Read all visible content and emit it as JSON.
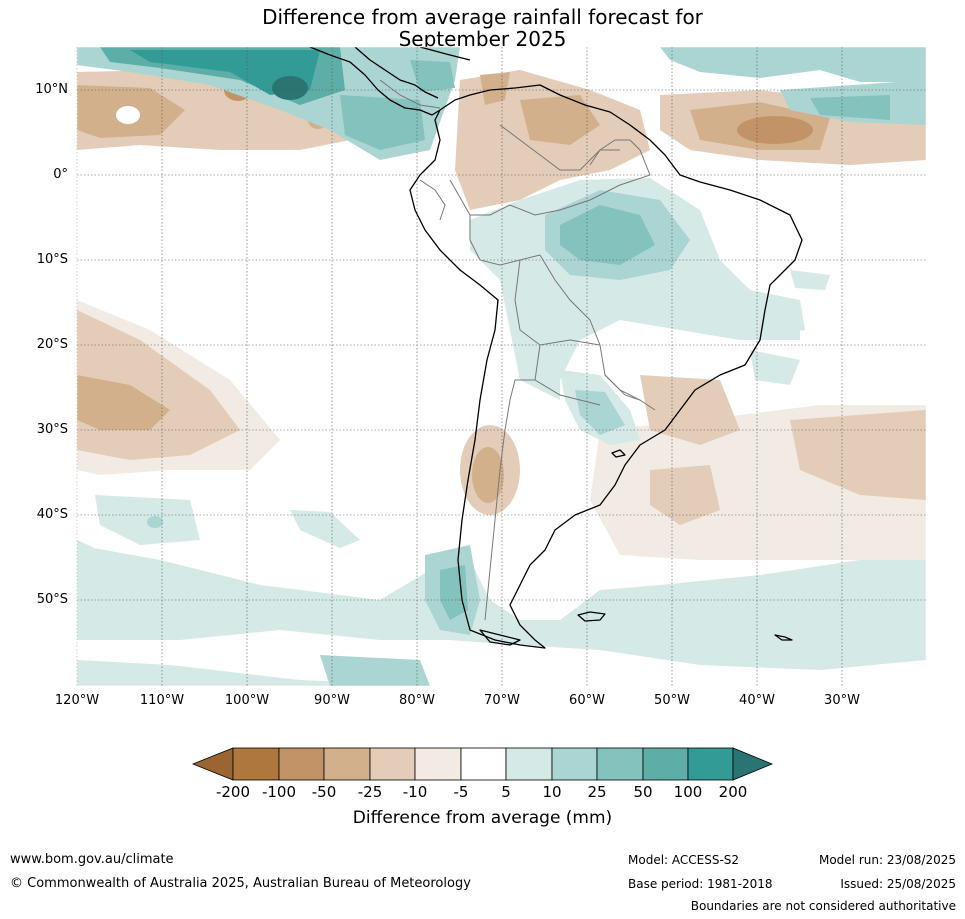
{
  "title": {
    "line1": "Difference from average rainfall forecast for",
    "line2": "September 2025"
  },
  "lat_labels": [
    "10°N",
    "0°",
    "10°S",
    "20°S",
    "30°S",
    "40°S",
    "50°S"
  ],
  "lon_labels": [
    "120°W",
    "110°W",
    "100°W",
    "90°W",
    "80°W",
    "70°W",
    "60°W",
    "50°W",
    "40°W",
    "30°W"
  ],
  "colorbar": {
    "title": "Difference from average (mm)",
    "ticks": [
      "-200",
      "-100",
      "-50",
      "-25",
      "-10",
      "-5",
      "5",
      "10",
      "25",
      "50",
      "100",
      "200"
    ],
    "colors": [
      "#9a6533",
      "#ae773e",
      "#c29366",
      "#d3b08c",
      "#e3cdb8",
      "#f1ebe4",
      "#ffffff",
      "#d5e9e7",
      "#abd5d2",
      "#84c2bd",
      "#5eaea8",
      "#339b95",
      "#2a7473"
    ]
  },
  "footer": {
    "website": "www.bom.gov.au/climate",
    "copyright": "© Commonwealth of Australia 2025, Australian Bureau of Meteorology",
    "model": "Model: ACCESS-S2",
    "base_period": "Base period: 1981-2018",
    "model_run": "Model run: 23/08/2025",
    "issued": "Issued: 25/08/2025",
    "disclaimer": "Boundaries are not considered authoritative"
  }
}
